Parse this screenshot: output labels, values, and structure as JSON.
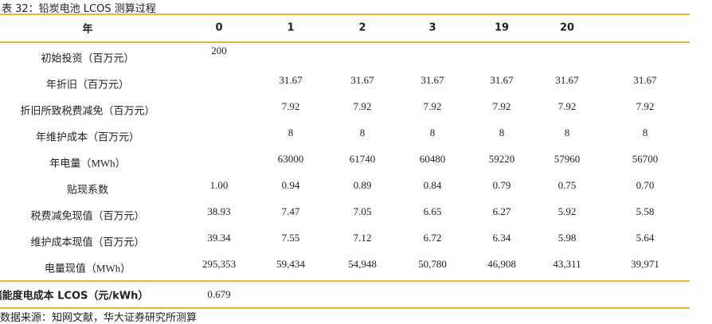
{
  "title": "表 32：铅炭电池 LCOS 测算过程",
  "table": {
    "header": [
      "年",
      "0",
      "1",
      "2",
      "3",
      "19",
      "20"
    ],
    "rows": [
      {
        "label": "初始投资（百万元）",
        "cells": [
          "200",
          null,
          null,
          null,
          null,
          null,
          null
        ]
      },
      {
        "label": "年折旧（百万元）",
        "cells": [
          null,
          "31.67",
          "31.67",
          "31.67",
          "31.67",
          "31.67",
          "31.67"
        ]
      },
      {
        "label": "折旧所致税费减免（百万元）",
        "cells": [
          null,
          "7.92",
          "7.92",
          "7.92",
          "7.92",
          "7.92",
          "7.92"
        ]
      },
      {
        "label": "年维护成本（百万元）",
        "cells": [
          null,
          "8",
          "8",
          "8",
          "8",
          "8",
          "8"
        ]
      },
      {
        "label": "年电量（MWh）",
        "cells": [
          null,
          "63000",
          "61740",
          "60480",
          "59220",
          "57960",
          "56700"
        ]
      },
      {
        "label": "贴现系数",
        "cells": [
          "1.00",
          "0.94",
          "0.89",
          "0.84",
          "0.79",
          "0.75",
          "0.70"
        ]
      },
      {
        "label": "税费减免现值（百万元）",
        "cells": [
          "38.93",
          "7.47",
          "7.05",
          "6.65",
          "6.27",
          "5.92",
          "5.58"
        ]
      },
      {
        "label": "维护成本现值（百万元）",
        "cells": [
          "39.34",
          "7.55",
          "7.12",
          "6.72",
          "6.34",
          "5.98",
          "5.64"
        ]
      },
      {
        "label": "电量现值（MWh）",
        "cells": [
          "295,353",
          "59,434",
          "54,948",
          "50,780",
          "46,908",
          "43,311",
          "39,971"
        ]
      }
    ],
    "footer": {
      "label": "储能度电成本 LCOS（元/kWh）",
      "value": "0.679"
    }
  },
  "source": "数据来源：知网文献，华大证券研究所测算"
}
